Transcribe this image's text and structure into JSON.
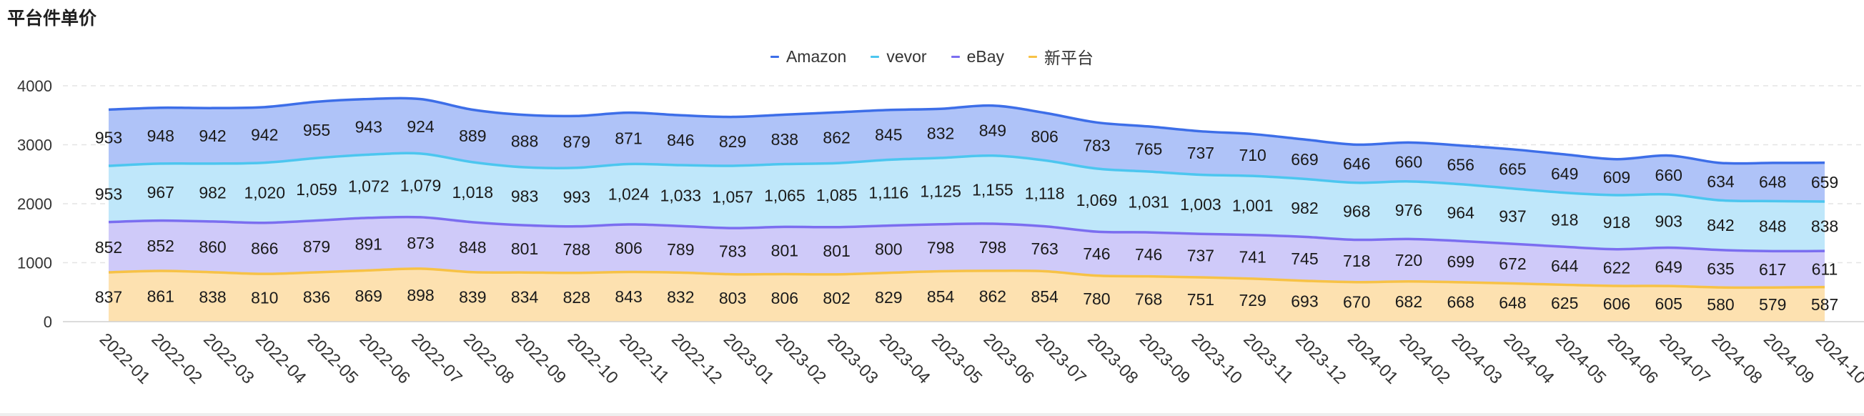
{
  "chart_title": "平台件单价",
  "chart_data": {
    "type": "area",
    "stacked": true,
    "smooth": true,
    "categories": [
      "2022-01",
      "2022-02",
      "2022-03",
      "2022-04",
      "2022-05",
      "2022-06",
      "2022-07",
      "2022-08",
      "2022-09",
      "2022-10",
      "2022-11",
      "2022-12",
      "2023-01",
      "2023-02",
      "2023-03",
      "2023-04",
      "2023-05",
      "2023-06",
      "2023-07",
      "2023-08",
      "2023-09",
      "2023-10",
      "2023-11",
      "2023-12",
      "2024-01",
      "2024-02",
      "2024-03",
      "2024-04",
      "2024-05",
      "2024-06",
      "2024-07",
      "2024-08",
      "2024-09",
      "2024-10"
    ],
    "series": [
      {
        "name": "新平台",
        "color": "#f7c246",
        "fill": "#fde1b0",
        "values": [
          837,
          861,
          838,
          810,
          836,
          869,
          898,
          839,
          834,
          828,
          843,
          832,
          803,
          806,
          802,
          829,
          854,
          862,
          854,
          780,
          768,
          751,
          729,
          693,
          670,
          682,
          668,
          648,
          625,
          606,
          605,
          580,
          579,
          587
        ],
        "labels": [
          "837",
          "861",
          "838",
          "810",
          "836",
          "869",
          "898",
          "839",
          "834",
          "828",
          "843",
          "832",
          "803",
          "806",
          "802",
          "829",
          "854",
          "862",
          "854",
          "780",
          "768",
          "751",
          "729",
          "693",
          "670",
          "682",
          "668",
          "648",
          "625",
          "606",
          "605",
          "580",
          "579",
          "587"
        ]
      },
      {
        "name": "eBay",
        "color": "#7b6ef0",
        "fill": "#cfcaf9",
        "values": [
          852,
          852,
          860,
          866,
          879,
          891,
          873,
          848,
          801,
          788,
          806,
          789,
          783,
          801,
          801,
          800,
          798,
          798,
          763,
          746,
          746,
          737,
          741,
          745,
          718,
          720,
          699,
          672,
          644,
          622,
          649,
          635,
          617,
          611
        ],
        "labels": [
          "852",
          "852",
          "860",
          "866",
          "879",
          "891",
          "873",
          "848",
          "801",
          "788",
          "806",
          "789",
          "783",
          "801",
          "801",
          "800",
          "798",
          "798",
          "763",
          "746",
          "746",
          "737",
          "741",
          "745",
          "718",
          "720",
          "699",
          "672",
          "644",
          "622",
          "649",
          "635",
          "617",
          "611"
        ]
      },
      {
        "name": "vevor",
        "color": "#4cc6ef",
        "fill": "#bfe7fa",
        "values": [
          953,
          967,
          982,
          1020,
          1059,
          1072,
          1079,
          1018,
          983,
          993,
          1024,
          1033,
          1057,
          1065,
          1085,
          1116,
          1125,
          1155,
          1118,
          1069,
          1031,
          1003,
          1001,
          982,
          968,
          976,
          964,
          937,
          918,
          918,
          903,
          842,
          848,
          838
        ],
        "labels": [
          "953",
          "967",
          "982",
          "1,020",
          "1,059",
          "1,072",
          "1,079",
          "1,018",
          "983",
          "993",
          "1,024",
          "1,033",
          "1,057",
          "1,065",
          "1,085",
          "1,116",
          "1,125",
          "1,155",
          "1,118",
          "1,069",
          "1,031",
          "1,003",
          "1,001",
          "982",
          "968",
          "976",
          "964",
          "937",
          "918",
          "918",
          "903",
          "842",
          "848",
          "838"
        ]
      },
      {
        "name": "Amazon",
        "color": "#3d6ee8",
        "fill": "#afc3f8",
        "values": [
          953,
          948,
          942,
          942,
          955,
          943,
          924,
          889,
          888,
          879,
          871,
          846,
          829,
          838,
          862,
          845,
          832,
          849,
          806,
          783,
          765,
          737,
          710,
          669,
          646,
          660,
          656,
          665,
          649,
          609,
          660,
          634,
          648,
          659
        ],
        "labels": [
          "953",
          "948",
          "942",
          "942",
          "955",
          "943",
          "924",
          "889",
          "888",
          "879",
          "871",
          "846",
          "829",
          "838",
          "862",
          "845",
          "832",
          "849",
          "806",
          "783",
          "765",
          "737",
          "710",
          "669",
          "646",
          "660",
          "656",
          "665",
          "649",
          "609",
          "660",
          "634",
          "648",
          "659"
        ]
      }
    ],
    "legend": [
      "Amazon",
      "vevor",
      "eBay",
      "新平台"
    ],
    "legend_position": "top-center",
    "y_ticks": [
      "0",
      "1000",
      "2000",
      "3000",
      "4000"
    ],
    "ylim": [
      0,
      4000
    ],
    "grid": true,
    "xlabel": "",
    "ylabel": ""
  }
}
